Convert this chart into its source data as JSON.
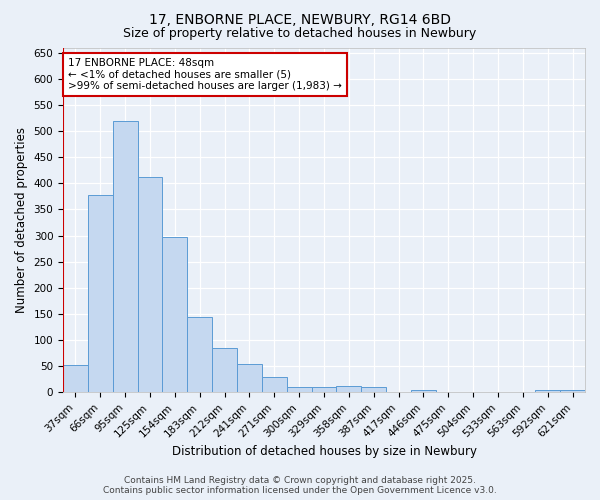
{
  "title1": "17, ENBORNE PLACE, NEWBURY, RG14 6BD",
  "title2": "Size of property relative to detached houses in Newbury",
  "xlabel": "Distribution of detached houses by size in Newbury",
  "ylabel": "Number of detached properties",
  "categories": [
    "37sqm",
    "66sqm",
    "95sqm",
    "125sqm",
    "154sqm",
    "183sqm",
    "212sqm",
    "241sqm",
    "271sqm",
    "300sqm",
    "329sqm",
    "358sqm",
    "387sqm",
    "417sqm",
    "446sqm",
    "475sqm",
    "504sqm",
    "533sqm",
    "563sqm",
    "592sqm",
    "621sqm"
  ],
  "values": [
    53,
    378,
    520,
    413,
    297,
    145,
    85,
    55,
    30,
    10,
    10,
    12,
    10,
    0,
    5,
    0,
    0,
    0,
    0,
    5,
    5
  ],
  "bar_color": "#c5d8f0",
  "bar_edge_color": "#5b9bd5",
  "vline_color": "#cc0000",
  "annotation_line1": "17 ENBORNE PLACE: 48sqm",
  "annotation_line2": "← <1% of detached houses are smaller (5)",
  "annotation_line3": ">99% of semi-detached houses are larger (1,983) →",
  "annotation_box_color": "#ffffff",
  "annotation_box_edge": "#cc0000",
  "ylim": [
    0,
    660
  ],
  "yticks": [
    0,
    50,
    100,
    150,
    200,
    250,
    300,
    350,
    400,
    450,
    500,
    550,
    600,
    650
  ],
  "footer1": "Contains HM Land Registry data © Crown copyright and database right 2025.",
  "footer2": "Contains public sector information licensed under the Open Government Licence v3.0.",
  "background_color": "#eaf0f8",
  "grid_color": "#ffffff",
  "title_fontsize": 10,
  "subtitle_fontsize": 9,
  "axis_label_fontsize": 8.5,
  "tick_fontsize": 7.5,
  "annotation_fontsize": 7.5,
  "footer_fontsize": 6.5
}
